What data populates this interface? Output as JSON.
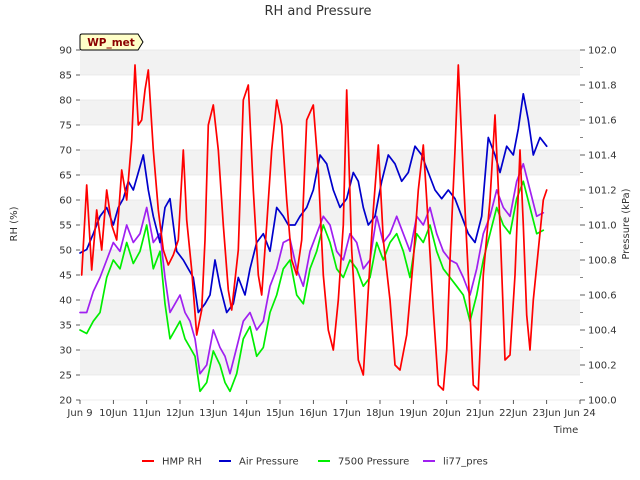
{
  "site_label": "WP_met",
  "chart_data": {
    "type": "line",
    "title": "RH and Pressure",
    "xlabel": "Time",
    "ylabel": "RH (%)",
    "y2label": "Pressure (kPa)",
    "xlim": [
      9,
      24
    ],
    "ylim": [
      20,
      90
    ],
    "y2lim": [
      100.0,
      102.0
    ],
    "x_ticks": [
      9,
      10,
      11,
      12,
      13,
      14,
      15,
      16,
      17,
      18,
      19,
      20,
      21,
      22,
      23,
      24
    ],
    "x_tick_labels": [
      "Jun 9",
      "10Jun",
      "11Jun",
      "12Jun",
      "13Jun",
      "14Jun",
      "15Jun",
      "16Jun",
      "17Jun",
      "18Jun",
      "19Jun",
      "20Jun",
      "21Jun",
      "22Jun",
      "23Jun",
      "Jun 24"
    ],
    "y_ticks": [
      20,
      25,
      30,
      35,
      40,
      45,
      50,
      55,
      60,
      65,
      70,
      75,
      80,
      85,
      90
    ],
    "y2_ticks": [
      100.0,
      100.2,
      100.4,
      100.6,
      100.8,
      101.0,
      101.2,
      101.4,
      101.6,
      101.8,
      102.0
    ],
    "grid": "horizontal bands",
    "legend_position": "bottom",
    "series": [
      {
        "name": "HMP RH",
        "axis": "left",
        "color": "#ff0000",
        "x": [
          9.05,
          9.2,
          9.35,
          9.5,
          9.65,
          9.8,
          9.95,
          10.1,
          10.25,
          10.4,
          10.55,
          10.65,
          10.75,
          10.85,
          10.95,
          11.05,
          11.2,
          11.35,
          11.5,
          11.65,
          11.8,
          11.95,
          12.1,
          12.2,
          12.35,
          12.5,
          12.65,
          12.75,
          12.85,
          13.0,
          13.15,
          13.3,
          13.45,
          13.55,
          13.75,
          13.9,
          14.05,
          14.2,
          14.35,
          14.45,
          14.6,
          14.75,
          14.9,
          15.05,
          15.2,
          15.35,
          15.5,
          15.65,
          15.8,
          16.0,
          16.15,
          16.3,
          16.45,
          16.6,
          16.75,
          16.9,
          17.0,
          17.15,
          17.35,
          17.5,
          17.65,
          17.8,
          17.95,
          18.1,
          18.3,
          18.45,
          18.6,
          18.8,
          19.0,
          19.15,
          19.3,
          19.45,
          19.6,
          19.75,
          19.9,
          20.0,
          20.1,
          20.25,
          20.35,
          20.5,
          20.65,
          20.8,
          20.95,
          21.1,
          21.3,
          21.45,
          21.6,
          21.75,
          21.9,
          22.05,
          22.2,
          22.3,
          22.4,
          22.5,
          22.6,
          22.75,
          22.9,
          23.0
        ],
        "values": [
          45,
          63,
          46,
          58,
          50,
          62,
          55,
          52,
          66,
          60,
          72,
          87,
          75,
          76,
          82,
          86,
          70,
          58,
          50,
          47,
          49,
          52,
          70,
          56,
          46,
          33,
          38,
          52,
          75,
          79,
          70,
          55,
          42,
          38,
          50,
          80,
          83,
          62,
          45,
          41,
          55,
          70,
          80,
          75,
          60,
          48,
          45,
          52,
          76,
          79,
          66,
          45,
          34,
          30,
          40,
          55,
          82,
          50,
          28,
          25,
          42,
          58,
          71,
          52,
          40,
          27,
          26,
          33,
          48,
          62,
          71,
          55,
          38,
          23,
          22,
          30,
          48,
          70,
          87,
          65,
          45,
          23,
          22,
          45,
          60,
          77,
          55,
          28,
          29,
          45,
          70,
          55,
          37,
          30,
          40,
          50,
          60,
          62
        ]
      },
      {
        "name": "Air Pressure",
        "axis": "right",
        "color": "#0000cc",
        "x": [
          9.0,
          9.2,
          9.4,
          9.6,
          9.8,
          10.0,
          10.15,
          10.3,
          10.45,
          10.6,
          10.75,
          10.9,
          11.05,
          11.2,
          11.4,
          11.55,
          11.7,
          11.9,
          12.1,
          12.25,
          12.4,
          12.55,
          12.75,
          12.9,
          13.05,
          13.2,
          13.4,
          13.6,
          13.75,
          13.95,
          14.1,
          14.3,
          14.5,
          14.7,
          14.9,
          15.1,
          15.25,
          15.45,
          15.6,
          15.8,
          16.0,
          16.2,
          16.4,
          16.6,
          16.8,
          17.0,
          17.2,
          17.35,
          17.5,
          17.65,
          17.85,
          18.05,
          18.25,
          18.45,
          18.65,
          18.85,
          19.05,
          19.25,
          19.45,
          19.65,
          19.85,
          20.05,
          20.25,
          20.45,
          20.65,
          20.85,
          21.05,
          21.25,
          21.45,
          21.6,
          21.8,
          22.0,
          22.15,
          22.3,
          22.45,
          22.6,
          22.8,
          23.0
        ],
        "values": [
          100.84,
          100.86,
          100.95,
          101.05,
          101.1,
          101.0,
          101.1,
          101.15,
          101.25,
          101.2,
          101.3,
          101.4,
          101.2,
          101.05,
          100.9,
          101.1,
          101.15,
          100.85,
          100.8,
          100.75,
          100.7,
          100.5,
          100.55,
          100.6,
          100.8,
          100.65,
          100.5,
          100.55,
          100.7,
          100.6,
          100.75,
          100.9,
          100.95,
          100.85,
          101.1,
          101.05,
          101.0,
          101.0,
          101.05,
          101.1,
          101.2,
          101.4,
          101.35,
          101.2,
          101.1,
          101.15,
          101.3,
          101.25,
          101.1,
          101.0,
          101.05,
          101.25,
          101.4,
          101.35,
          101.25,
          101.3,
          101.45,
          101.4,
          101.3,
          101.2,
          101.15,
          101.2,
          101.15,
          101.05,
          100.95,
          100.9,
          101.05,
          101.5,
          101.4,
          101.3,
          101.45,
          101.4,
          101.55,
          101.75,
          101.6,
          101.4,
          101.5,
          101.45
        ]
      },
      {
        "name": "7500 Pressure",
        "axis": "right",
        "color": "#00ee00",
        "x": [
          9.0,
          9.2,
          9.4,
          9.6,
          9.8,
          10.0,
          10.2,
          10.4,
          10.6,
          10.8,
          11.0,
          11.2,
          11.4,
          11.55,
          11.7,
          11.85,
          12.0,
          12.15,
          12.3,
          12.45,
          12.6,
          12.8,
          13.0,
          13.2,
          13.35,
          13.5,
          13.7,
          13.9,
          14.1,
          14.3,
          14.5,
          14.7,
          14.9,
          15.1,
          15.3,
          15.5,
          15.7,
          15.9,
          16.1,
          16.3,
          16.5,
          16.7,
          16.9,
          17.1,
          17.3,
          17.5,
          17.7,
          17.9,
          18.1,
          18.3,
          18.5,
          18.7,
          18.9,
          19.1,
          19.3,
          19.5,
          19.7,
          19.9,
          20.1,
          20.3,
          20.5,
          20.7,
          20.9,
          21.1,
          21.3,
          21.5,
          21.7,
          21.9,
          22.1,
          22.3,
          22.5,
          22.7,
          22.9
        ],
        "values": [
          100.4,
          100.38,
          100.45,
          100.5,
          100.7,
          100.8,
          100.75,
          100.9,
          100.78,
          100.85,
          101.0,
          100.75,
          100.85,
          100.55,
          100.35,
          100.4,
          100.45,
          100.35,
          100.3,
          100.25,
          100.05,
          100.1,
          100.28,
          100.2,
          100.1,
          100.05,
          100.15,
          100.35,
          100.42,
          100.25,
          100.3,
          100.5,
          100.6,
          100.75,
          100.8,
          100.6,
          100.55,
          100.75,
          100.85,
          101.0,
          100.9,
          100.75,
          100.7,
          100.8,
          100.75,
          100.65,
          100.7,
          100.9,
          100.8,
          100.9,
          100.95,
          100.85,
          100.7,
          100.95,
          100.9,
          101.0,
          100.85,
          100.75,
          100.7,
          100.65,
          100.6,
          100.45,
          100.6,
          100.8,
          100.95,
          101.1,
          101.0,
          100.95,
          101.15,
          101.25,
          101.1,
          100.95,
          100.97
        ]
      },
      {
        "name": "li77_pres",
        "axis": "right",
        "color": "#a020f0",
        "x": [
          9.0,
          9.2,
          9.4,
          9.6,
          9.8,
          10.0,
          10.2,
          10.4,
          10.6,
          10.8,
          11.0,
          11.2,
          11.4,
          11.55,
          11.7,
          11.85,
          12.0,
          12.15,
          12.3,
          12.45,
          12.6,
          12.8,
          13.0,
          13.2,
          13.35,
          13.5,
          13.7,
          13.9,
          14.1,
          14.3,
          14.5,
          14.7,
          14.9,
          15.1,
          15.3,
          15.5,
          15.7,
          15.9,
          16.1,
          16.3,
          16.5,
          16.7,
          16.9,
          17.1,
          17.3,
          17.5,
          17.7,
          17.9,
          18.1,
          18.3,
          18.5,
          18.7,
          18.9,
          19.1,
          19.3,
          19.5,
          19.7,
          19.9,
          20.1,
          20.3,
          20.5,
          20.7,
          20.9,
          21.1,
          21.3,
          21.5,
          21.7,
          21.9,
          22.1,
          22.3,
          22.5,
          22.7,
          22.9
        ],
        "values": [
          100.5,
          100.5,
          100.62,
          100.7,
          100.8,
          100.9,
          100.85,
          101.0,
          100.9,
          100.95,
          101.1,
          100.9,
          100.95,
          100.7,
          100.5,
          100.55,
          100.6,
          100.5,
          100.45,
          100.35,
          100.15,
          100.2,
          100.4,
          100.3,
          100.25,
          100.15,
          100.3,
          100.45,
          100.5,
          100.4,
          100.45,
          100.65,
          100.75,
          100.9,
          100.92,
          100.75,
          100.65,
          100.85,
          100.95,
          101.05,
          101.0,
          100.85,
          100.8,
          100.95,
          100.9,
          100.75,
          100.8,
          101.05,
          100.9,
          100.95,
          101.05,
          100.95,
          100.85,
          101.05,
          101.0,
          101.1,
          100.95,
          100.85,
          100.8,
          100.78,
          100.7,
          100.6,
          100.75,
          100.95,
          101.05,
          101.2,
          101.1,
          101.05,
          101.25,
          101.35,
          101.2,
          101.05,
          101.07
        ]
      }
    ]
  }
}
